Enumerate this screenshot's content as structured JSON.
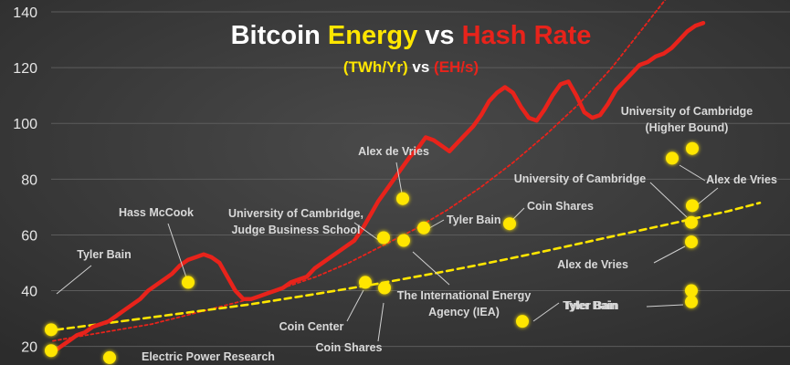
{
  "chart_data": {
    "type": "scatter",
    "title": {
      "parts": [
        {
          "text": "Bitcoin ",
          "color": "#ffffff"
        },
        {
          "text": "Energy",
          "color": "#ffe600"
        },
        {
          "text": " vs ",
          "color": "#ffffff"
        },
        {
          "text": "Hash Rate",
          "color": "#e8231b"
        }
      ]
    },
    "subtitle": {
      "parts": [
        {
          "text": "(TWh/Yr)",
          "color": "#ffe600"
        },
        {
          "text": " vs ",
          "color": "#ffffff"
        },
        {
          "text": "(EH/s)",
          "color": "#e8231b"
        }
      ]
    },
    "y_axis": {
      "min": 14,
      "max": 140,
      "ticks": [
        20,
        40,
        60,
        80,
        100,
        120,
        140
      ],
      "grid": true
    },
    "x_axis": {
      "labels_shown": false
    },
    "colors": {
      "hash_rate": "#e8231b",
      "estimates": "#ffe600",
      "background": "#3a3a3a"
    },
    "hash_rate_series": {
      "name": "Hash Rate",
      "values": [
        18,
        20,
        22,
        24,
        25,
        27,
        28,
        29,
        31,
        33,
        35,
        37,
        40,
        42,
        44,
        46,
        49,
        51,
        52,
        53,
        52,
        50,
        45,
        40,
        37,
        37,
        38,
        39,
        40,
        41,
        43,
        44,
        45,
        48,
        50,
        52,
        54,
        56,
        58,
        62,
        67,
        72,
        76,
        80,
        84,
        88,
        91,
        95,
        94,
        92,
        90,
        93,
        96,
        99,
        103,
        108,
        111,
        113,
        111,
        106,
        102,
        101,
        105,
        110,
        114,
        115,
        110,
        104,
        102,
        103,
        107,
        112,
        115,
        118,
        121,
        122,
        124,
        125,
        127,
        130,
        133,
        135,
        136
      ]
    },
    "trend_lines": [
      {
        "name": "hash-rate-trend",
        "color": "#e8231b",
        "values": [
          22,
          24,
          26,
          28,
          31,
          34,
          37,
          41,
          45,
          50,
          56,
          62,
          69,
          77,
          86,
          96,
          107,
          120,
          135,
          150
        ]
      },
      {
        "name": "energy-trend",
        "color": "#ffe600",
        "values": [
          26,
          27.5,
          29,
          30.5,
          32,
          33.5,
          35,
          36.8,
          38.6,
          40.5,
          42.4,
          44.5,
          46.6,
          48.8,
          51.1,
          53.5,
          56,
          58.5,
          61,
          63.5,
          66,
          68.5,
          71.5
        ]
      }
    ],
    "estimates": [
      {
        "label": "Tyler Bain",
        "value": 26
      },
      {
        "label": "",
        "value": 18.5
      },
      {
        "label": "Electric Power Research",
        "value": 16
      },
      {
        "label": "Hass McCook",
        "value": 43
      },
      {
        "label": "Coin Center",
        "value": 43
      },
      {
        "label": "Coin Shares",
        "value": 41
      },
      {
        "label": "University of Cambridge, Judge Business School",
        "value": 59
      },
      {
        "label": "The International Energy Agency (IEA)",
        "value": 58
      },
      {
        "label": "Alex de Vries",
        "value": 73
      },
      {
        "label": "Tyler Bain",
        "value": 62.5
      },
      {
        "label": "Coin Shares",
        "value": 64
      },
      {
        "label": "Tyler Bain",
        "value": 29
      },
      {
        "label": "University of Cambridge (Higher Bound)",
        "value": 91
      },
      {
        "label": "",
        "value": 87.5
      },
      {
        "label": "Alex de Vries",
        "value": 70.5
      },
      {
        "label": "University of Cambridge",
        "value": 64.5
      },
      {
        "label": "Alex de Vries",
        "value": 57.5
      },
      {
        "label": "Tyler Bain",
        "value": 40
      },
      {
        "label": "",
        "value": 36
      }
    ]
  }
}
